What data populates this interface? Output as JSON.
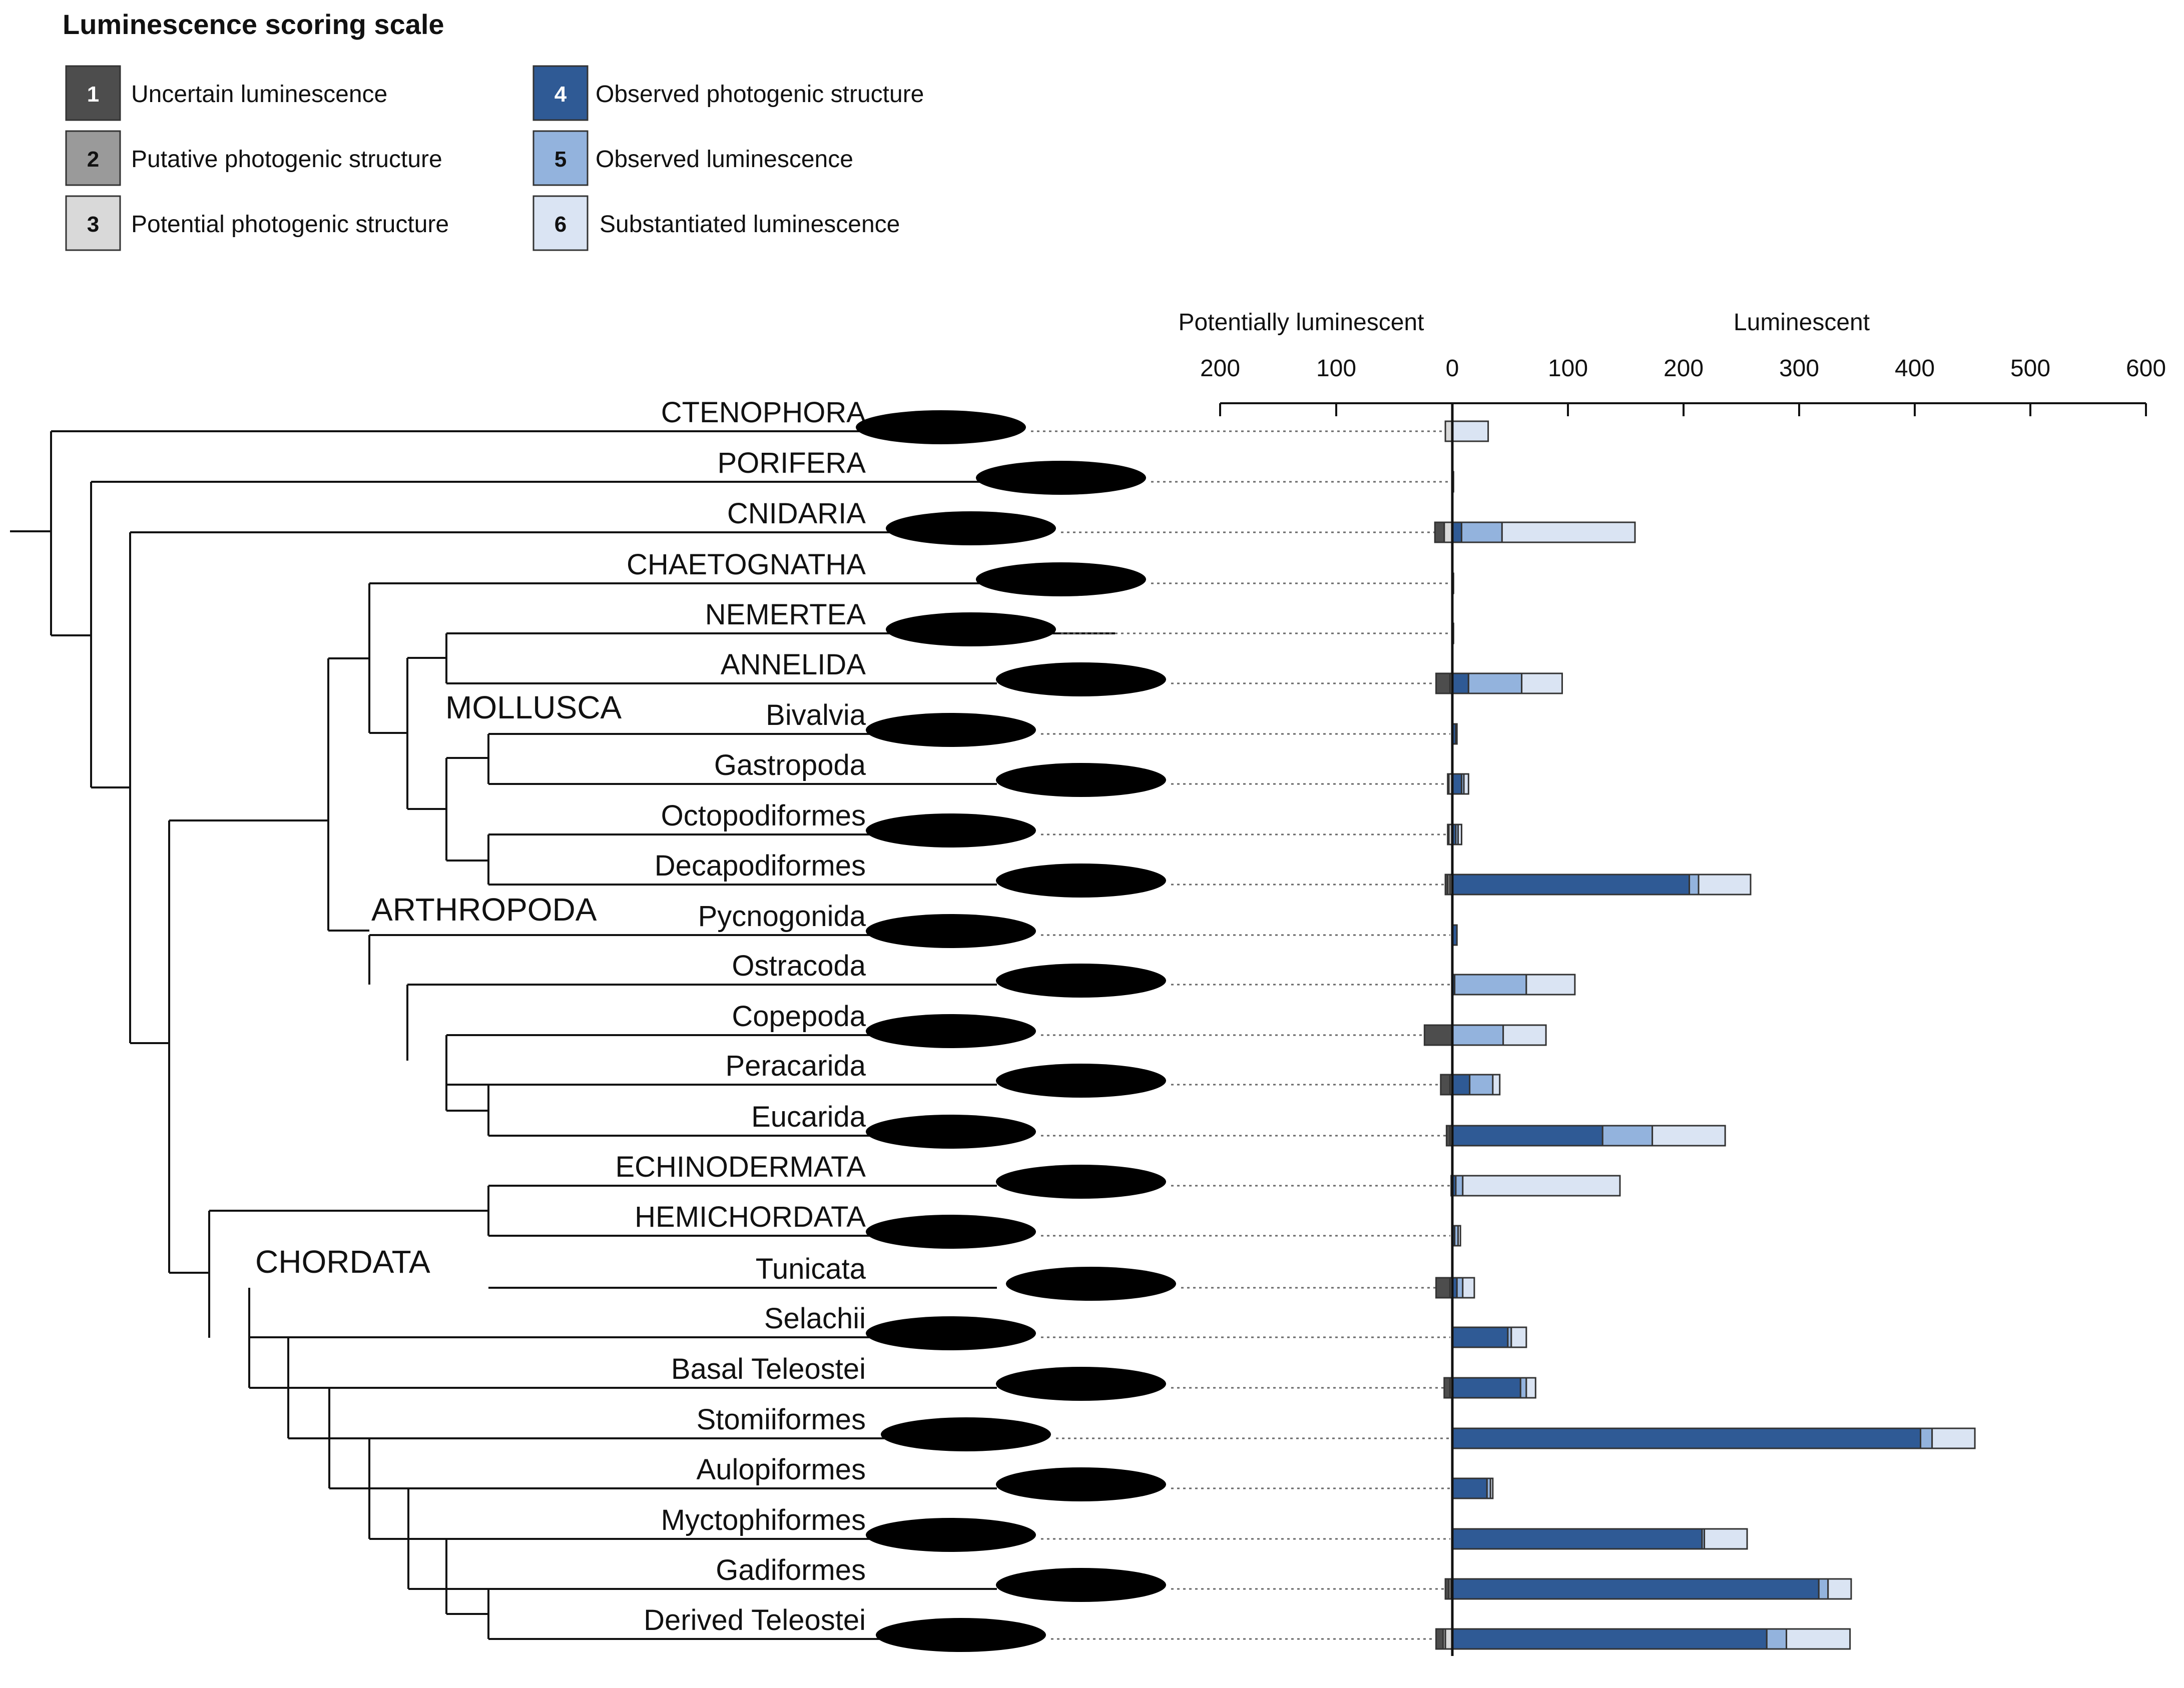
{
  "legend": {
    "title": "Luminescence scoring scale",
    "items": [
      {
        "num": "1",
        "label": "Uncertain luminescence",
        "color": "#4d4d4d"
      },
      {
        "num": "2",
        "label": "Putative photogenic structure",
        "color": "#9a9a9a"
      },
      {
        "num": "3",
        "label": "Potential photogenic structure",
        "color": "#d9d9d9"
      },
      {
        "num": "4",
        "label": "Observed photogenic structure",
        "color": "#2f5a95"
      },
      {
        "num": "5",
        "label": "Observed luminescence",
        "color": "#93b3dd"
      },
      {
        "num": "6",
        "label": "Substantiated luminescence",
        "color": "#dae4f3"
      }
    ]
  },
  "chart_data": {
    "type": "bar",
    "orientation": "horizontal-stacked",
    "axis": {
      "left_title": "Potentially luminescent",
      "right_title": "Luminescent",
      "left_range": [
        0,
        200
      ],
      "right_range": [
        0,
        600
      ],
      "left_ticks": [
        "200",
        "100",
        "0"
      ],
      "right_ticks": [
        "100",
        "200",
        "300",
        "400",
        "500",
        "600"
      ]
    },
    "series_order_left": [
      "1",
      "2",
      "3"
    ],
    "series_order_right": [
      "4",
      "5",
      "6"
    ],
    "groups": [
      {
        "label": "MOLLUSCA"
      },
      {
        "label": "ARTHROPODA"
      },
      {
        "label": "CHORDATA"
      }
    ],
    "taxa": [
      {
        "name": "CTENOPHORA",
        "left": [
          0,
          0,
          6
        ],
        "right": [
          0,
          0,
          31
        ]
      },
      {
        "name": "PORIFERA",
        "left": [
          0,
          0,
          0
        ],
        "right": [
          1,
          0,
          0
        ]
      },
      {
        "name": "CNIDARIA",
        "left": [
          8,
          0,
          7
        ],
        "right": [
          8,
          35,
          115
        ]
      },
      {
        "name": "CHAETOGNATHA",
        "left": [
          0,
          0,
          0
        ],
        "right": [
          0,
          0,
          1
        ]
      },
      {
        "name": "NEMERTEA",
        "left": [
          0,
          0,
          0
        ],
        "right": [
          0,
          0,
          1
        ]
      },
      {
        "name": "ANNELIDA",
        "left": [
          12,
          2,
          0
        ],
        "right": [
          14,
          46,
          35
        ]
      },
      {
        "name": "Bivalvia",
        "left": [
          0,
          0,
          0
        ],
        "right": [
          3,
          0,
          1
        ]
      },
      {
        "name": "Gastropoda",
        "left": [
          0,
          1,
          3
        ],
        "right": [
          8,
          2,
          4
        ]
      },
      {
        "name": "Octopodiformes",
        "left": [
          0,
          1,
          3
        ],
        "right": [
          3,
          2,
          3
        ]
      },
      {
        "name": "Decapodiformes",
        "left": [
          2,
          2,
          2
        ],
        "right": [
          205,
          8,
          45
        ]
      },
      {
        "name": "Pycnogonida",
        "left": [
          0,
          0,
          0
        ],
        "right": [
          4,
          0,
          0
        ]
      },
      {
        "name": "Ostracoda",
        "left": [
          0,
          0,
          0
        ],
        "right": [
          2,
          62,
          42
        ]
      },
      {
        "name": "Copepoda",
        "left": [
          24,
          0,
          0
        ],
        "right": [
          0,
          44,
          37
        ]
      },
      {
        "name": "Peracarida",
        "left": [
          8,
          2,
          0
        ],
        "right": [
          15,
          20,
          6
        ]
      },
      {
        "name": "Eucarida",
        "left": [
          3,
          2,
          0
        ],
        "right": [
          130,
          43,
          63
        ]
      },
      {
        "name": "ECHINODERMATA",
        "left": [
          0,
          0,
          1
        ],
        "right": [
          3,
          6,
          136
        ]
      },
      {
        "name": "HEMICHORDATA",
        "left": [
          0,
          0,
          0
        ],
        "right": [
          2,
          3,
          2
        ]
      },
      {
        "name": "Tunicata",
        "left": [
          12,
          2,
          0
        ],
        "right": [
          4,
          5,
          10
        ]
      },
      {
        "name": "Selachii",
        "left": [
          0,
          0,
          0
        ],
        "right": [
          48,
          3,
          13
        ]
      },
      {
        "name": "Basal Teleostei",
        "left": [
          5,
          2,
          0
        ],
        "right": [
          59,
          5,
          8
        ]
      },
      {
        "name": "Stomiiformes",
        "left": [
          0,
          0,
          0
        ],
        "right": [
          405,
          10,
          37
        ]
      },
      {
        "name": "Aulopiformes",
        "left": [
          0,
          0,
          0
        ],
        "right": [
          30,
          3,
          2
        ]
      },
      {
        "name": "Myctophiformes",
        "left": [
          0,
          0,
          0
        ],
        "right": [
          216,
          2,
          37
        ]
      },
      {
        "name": "Gadiformes",
        "left": [
          3,
          2,
          1
        ],
        "right": [
          317,
          8,
          20
        ]
      },
      {
        "name": "Derived Teleostei",
        "left": [
          6,
          2,
          6
        ],
        "right": [
          272,
          17,
          55
        ]
      }
    ]
  }
}
